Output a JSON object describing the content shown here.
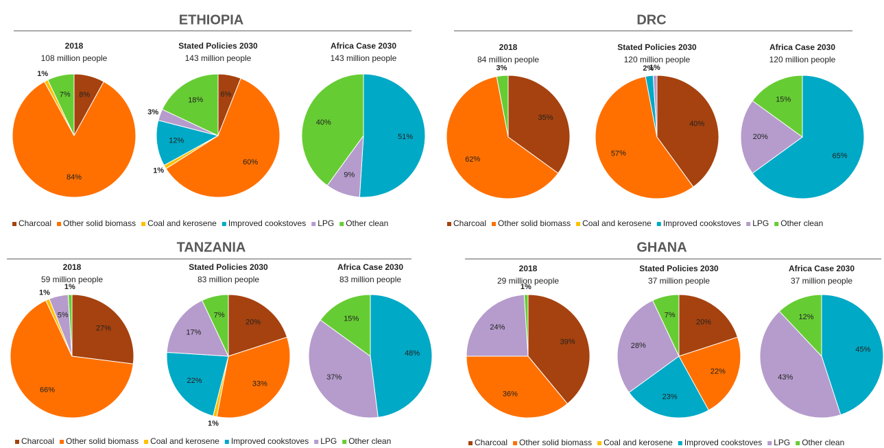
{
  "panels": [
    {
      "title": "ETHIOPIA",
      "categories": [
        "Charcoal",
        "Other solid biomass",
        "Coal and kerosene",
        "Improved cookstoves",
        "LPG",
        "Other clean"
      ],
      "colors": [
        "#a5420f",
        "#ff7000",
        "#ffc000",
        "#00a9c6",
        "#b59ccc",
        "#66cc33"
      ],
      "chart_data": [
        {
          "type": "pie",
          "title": "2018",
          "subtitle": "108 million people",
          "values": [
            8,
            84,
            1,
            null,
            null,
            7
          ]
        },
        {
          "type": "pie",
          "title": "Stated Policies 2030",
          "subtitle": "143 million people",
          "values": [
            6,
            60,
            1,
            12,
            3,
            18
          ]
        },
        {
          "type": "pie",
          "title": "Africa Case 2030",
          "subtitle": "143 million people",
          "values": [
            null,
            null,
            null,
            51,
            9,
            40
          ]
        }
      ]
    },
    {
      "title": "DRC",
      "categories": [
        "Charcoal",
        "Other solid biomass",
        "Coal and kerosene",
        "Improved cookstoves",
        "LPG",
        "Other clean"
      ],
      "colors": [
        "#a5420f",
        "#ff7000",
        "#ffc000",
        "#00a9c6",
        "#b59ccc",
        "#66cc33"
      ],
      "chart_data": [
        {
          "type": "pie",
          "title": "2018",
          "subtitle": "84 million people",
          "values": [
            35,
            62,
            null,
            null,
            null,
            3
          ]
        },
        {
          "type": "pie",
          "title": "Stated Policies 2030",
          "subtitle": "120 million people",
          "values": [
            40,
            57,
            null,
            2,
            1,
            null
          ]
        },
        {
          "type": "pie",
          "title": "Africa Case 2030",
          "subtitle": "120 million people",
          "values": [
            null,
            null,
            null,
            65,
            20,
            15
          ]
        }
      ]
    },
    {
      "title": "TANZANIA",
      "categories": [
        "Charcoal",
        "Other solid biomass",
        "Coal and kerosene",
        "Improved cookstoves",
        "LPG",
        "Other clean"
      ],
      "colors": [
        "#a5420f",
        "#ff7000",
        "#ffc000",
        "#00a9c6",
        "#b59ccc",
        "#66cc33"
      ],
      "chart_data": [
        {
          "type": "pie",
          "title": "2018",
          "subtitle": "59 million people",
          "values": [
            27,
            66,
            1,
            null,
            5,
            1
          ]
        },
        {
          "type": "pie",
          "title": "Stated Policies 2030",
          "subtitle": "83 million people",
          "values": [
            20,
            33,
            1,
            22,
            17,
            7
          ]
        },
        {
          "type": "pie",
          "title": "Africa Case 2030",
          "subtitle": "83 million people",
          "values": [
            null,
            null,
            null,
            48,
            37,
            15
          ]
        }
      ]
    },
    {
      "title": "GHANA",
      "categories": [
        "Charcoal",
        "Other solid biomass",
        "Coal and kerosene",
        "Improved cookstoves",
        "LPG",
        "Other clean"
      ],
      "colors": [
        "#a5420f",
        "#ff7000",
        "#ffc000",
        "#00a9c6",
        "#b59ccc",
        "#66cc33"
      ],
      "chart_data": [
        {
          "type": "pie",
          "title": "2018",
          "subtitle": "29 million people",
          "values": [
            39,
            36,
            null,
            null,
            24,
            1
          ]
        },
        {
          "type": "pie",
          "title": "Stated Policies 2030",
          "subtitle": "37 million people",
          "values": [
            20,
            22,
            null,
            23,
            28,
            7
          ]
        },
        {
          "type": "pie",
          "title": "Africa Case 2030",
          "subtitle": "37 million people",
          "values": [
            null,
            null,
            null,
            45,
            43,
            12
          ]
        }
      ]
    }
  ]
}
